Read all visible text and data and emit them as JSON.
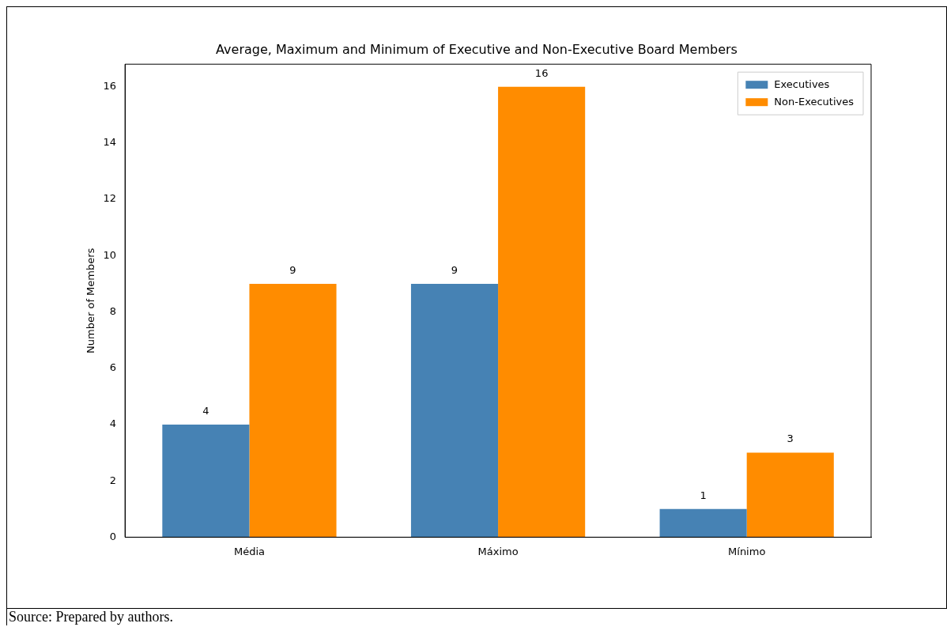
{
  "chart_data": {
    "type": "bar",
    "title": "Average, Maximum and Minimum of Executive and Non-Executive Board Members",
    "ylabel": "Number of Members",
    "categories": [
      "Média",
      "Máximo",
      "Mínimo"
    ],
    "series": [
      {
        "name": "Executives",
        "color": "#4682b4",
        "values": [
          4,
          9,
          1
        ]
      },
      {
        "name": "Non-Executives",
        "color": "#ff8c00",
        "values": [
          9,
          16,
          3
        ]
      }
    ],
    "ylim": [
      0,
      16.8
    ],
    "yticks": [
      0,
      2,
      4,
      6,
      8,
      10,
      12,
      14,
      16
    ],
    "grid": false,
    "legend": "top right",
    "data_labels": true,
    "annotations": [
      "Source: Prepared by authors."
    ]
  }
}
